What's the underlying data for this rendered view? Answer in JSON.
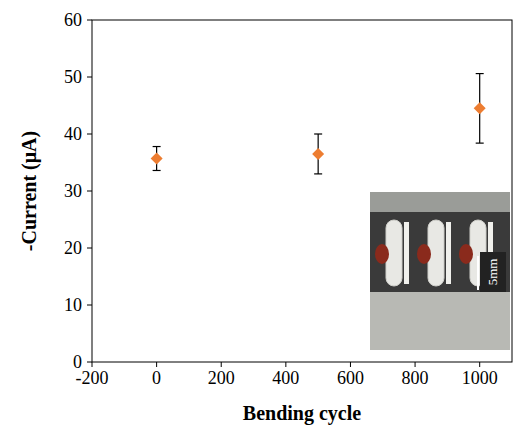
{
  "chart_data": {
    "type": "scatter",
    "x_label": "Bending cycle",
    "y_label": "-Current (μA)",
    "x": [
      0,
      500,
      1000
    ],
    "values": [
      35.7,
      36.5,
      44.5
    ],
    "errors": [
      2.1,
      3.5,
      6.1
    ],
    "color": "#ed7d31",
    "marker": "diamond",
    "xlim": [
      -200,
      1100
    ],
    "xticks": [
      -200,
      0,
      200,
      400,
      600,
      800,
      1000
    ],
    "ylim": [
      0,
      60
    ],
    "yticks": [
      0,
      10,
      20,
      30,
      40,
      50,
      60
    ],
    "grid": false,
    "annotations": [
      "5mm"
    ]
  }
}
